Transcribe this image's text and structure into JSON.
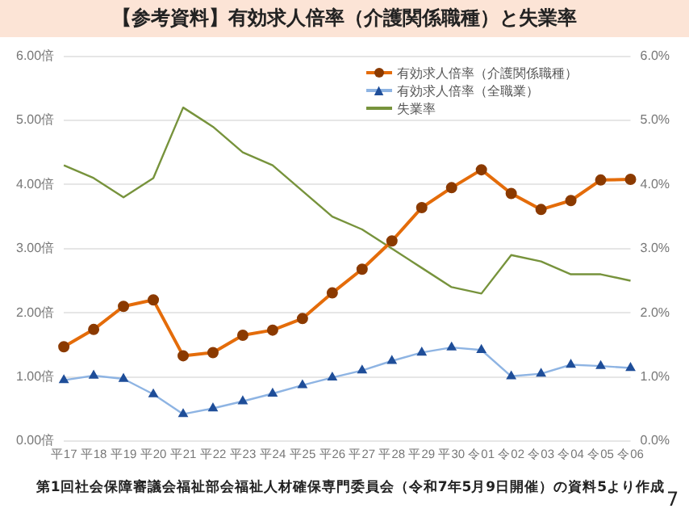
{
  "chart_data": {
    "type": "line",
    "title": "【参考資料】有効求人倍率（介護関係職種）と失業率",
    "categories": [
      "平17",
      "平18",
      "平19",
      "平20",
      "平21",
      "平22",
      "平23",
      "平24",
      "平25",
      "平26",
      "平27",
      "平28",
      "平29",
      "平30",
      "令01",
      "令02",
      "令03",
      "令04",
      "令05",
      "令06"
    ],
    "series": [
      {
        "name": "有効求人倍率（介護関係職種）",
        "color": "#e46c0a",
        "marker": "circle",
        "values": [
          1.47,
          1.74,
          2.1,
          2.2,
          1.33,
          1.38,
          1.65,
          1.73,
          1.91,
          2.31,
          2.68,
          3.12,
          3.64,
          3.95,
          4.23,
          3.86,
          3.61,
          3.75,
          4.07,
          4.08
        ]
      },
      {
        "name": "有効求人倍率（全職業）",
        "color": "#8eb4e3",
        "marker": "triangle",
        "values": [
          0.95,
          1.02,
          0.97,
          0.73,
          0.42,
          0.51,
          0.62,
          0.74,
          0.87,
          0.99,
          1.1,
          1.25,
          1.38,
          1.46,
          1.42,
          1.01,
          1.05,
          1.19,
          1.17,
          1.14
        ]
      },
      {
        "name": "失業率",
        "color": "#77933c",
        "marker": "none",
        "axis": "y2",
        "values": [
          4.3,
          4.1,
          3.8,
          4.1,
          5.2,
          4.9,
          4.5,
          4.3,
          3.9,
          3.5,
          3.3,
          3.0,
          2.7,
          2.4,
          2.3,
          2.9,
          2.8,
          2.6,
          2.6,
          2.5
        ]
      }
    ],
    "ylim": [
      0,
      6
    ],
    "yticks": [
      {
        "value": 0,
        "label": "0.00倍"
      },
      {
        "value": 1,
        "label": "1.00倍"
      },
      {
        "value": 2,
        "label": "2.00倍"
      },
      {
        "value": 3,
        "label": "3.00倍"
      },
      {
        "value": 4,
        "label": "4.00倍"
      },
      {
        "value": 5,
        "label": "5.00倍"
      },
      {
        "value": 6,
        "label": "6.00倍"
      }
    ],
    "y2lim": [
      0,
      6
    ],
    "y2ticks": [
      {
        "value": 0,
        "label": "0.0%"
      },
      {
        "value": 1,
        "label": "1.0%"
      },
      {
        "value": 2,
        "label": "2.0%"
      },
      {
        "value": 3,
        "label": "3.0%"
      },
      {
        "value": 4,
        "label": "4.0%"
      },
      {
        "value": 5,
        "label": "5.0%"
      },
      {
        "value": 6,
        "label": "6.0%"
      }
    ],
    "grid": "y",
    "legend": "top right",
    "line_style": "solid",
    "annotations": [
      "第1回社会保障審議会福祉部会福祉人材確保専門委員会（令和7年5月9日開催）の資料5より作成",
      "7"
    ]
  }
}
